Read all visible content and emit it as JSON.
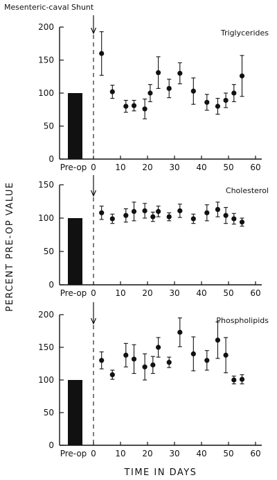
{
  "figure": {
    "title": "Mesenteric-caval Shunt",
    "ylabel": "PERCENT  PRE-OP  VALUE",
    "xlabel": "TIME  IN  DAYS"
  },
  "chart_data": [
    {
      "type": "scatter",
      "title": "Triglycerides",
      "ylim": [
        0,
        200
      ],
      "xlim": [
        0,
        60
      ],
      "yticks": [
        "0",
        "50",
        "100",
        "150",
        "200"
      ],
      "xticks": [
        "Pre-op",
        "0",
        "10",
        "20",
        "30",
        "40",
        "50",
        "60"
      ],
      "preop_bar": 100,
      "series": [
        {
          "x": [
            3,
            7,
            12,
            15,
            19,
            21,
            24,
            28,
            32,
            37,
            42,
            46,
            49,
            52,
            55
          ],
          "y": [
            160,
            102,
            80,
            81,
            76,
            100,
            131,
            107,
            130,
            103,
            86,
            80,
            89,
            100,
            126
          ],
          "err": [
            33,
            10,
            9,
            8,
            15,
            13,
            24,
            14,
            16,
            20,
            12,
            12,
            11,
            13,
            31
          ]
        }
      ]
    },
    {
      "type": "scatter",
      "title": "Cholesterol",
      "ylim": [
        0,
        150
      ],
      "xlim": [
        0,
        60
      ],
      "yticks": [
        "0",
        "50",
        "100",
        "150"
      ],
      "xticks": [
        "Pre-op",
        "0",
        "10",
        "20",
        "30",
        "40",
        "50",
        "60"
      ],
      "preop_bar": 100,
      "series": [
        {
          "x": [
            3,
            7,
            12,
            15,
            19,
            22,
            24,
            28,
            32,
            37,
            42,
            46,
            49,
            52,
            55
          ],
          "y": [
            108,
            99,
            104,
            110,
            111,
            102,
            110,
            102,
            111,
            99,
            108,
            113,
            104,
            99,
            94
          ],
          "err": [
            10,
            7,
            10,
            14,
            11,
            7,
            8,
            6,
            10,
            7,
            12,
            11,
            12,
            8,
            6
          ]
        }
      ]
    },
    {
      "type": "scatter",
      "title": "Phospholipids",
      "ylim": [
        0,
        200
      ],
      "xlim": [
        0,
        60
      ],
      "yticks": [
        "0",
        "50",
        "100",
        "150",
        "200"
      ],
      "xticks": [
        "Pre-op",
        "0",
        "10",
        "20",
        "30",
        "40",
        "50",
        "60"
      ],
      "preop_bar": 100,
      "series": [
        {
          "x": [
            3,
            7,
            12,
            15,
            19,
            22,
            24,
            28,
            32,
            37,
            42,
            46,
            49,
            52,
            55
          ],
          "y": [
            130,
            108,
            138,
            132,
            120,
            123,
            150,
            127,
            173,
            140,
            130,
            161,
            138,
            100,
            101
          ],
          "err": [
            13,
            7,
            18,
            22,
            20,
            13,
            15,
            8,
            22,
            26,
            15,
            28,
            27,
            6,
            7
          ]
        }
      ]
    }
  ]
}
